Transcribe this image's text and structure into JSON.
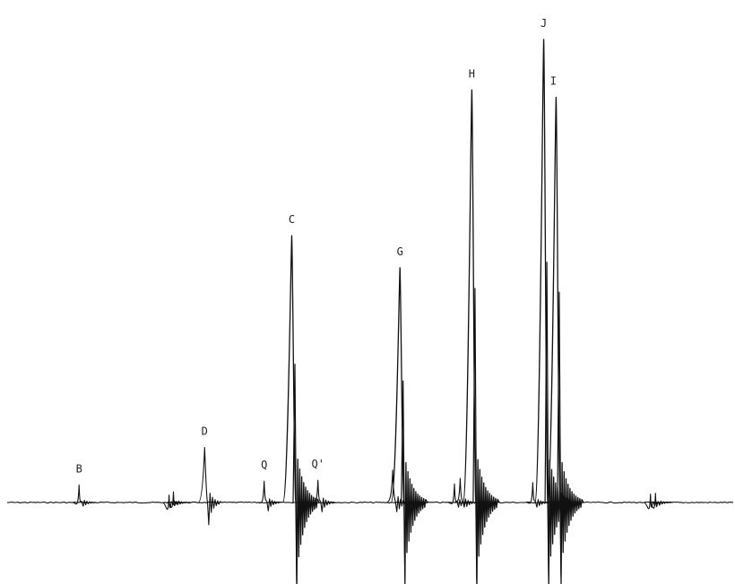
{
  "chart_data": {
    "type": "line",
    "title": "",
    "xlabel": "",
    "ylabel": "",
    "xlim": [
      0,
      100
    ],
    "ylim": [
      -12,
      100
    ],
    "grid": false,
    "legend": "none",
    "line_color": "#111111",
    "background": "#ffffff",
    "peaks": [
      {
        "label": "B",
        "x": 9.9,
        "height": 3.8,
        "dip": 0.8,
        "tail": 0.3
      },
      {
        "label": "",
        "x": 22.3,
        "height": 1.6,
        "dip": 0.5,
        "tail": 0.2
      },
      {
        "label": "",
        "x": 22.9,
        "height": 2.3,
        "dip": 0.5,
        "tail": 0.2
      },
      {
        "label": "D",
        "x": 27.2,
        "height": 11.9,
        "dip": 4.8,
        "tail": 1.0
      },
      {
        "label": "Q",
        "x": 35.4,
        "height": 4.6,
        "dip": 1.8,
        "tail": 0.5
      },
      {
        "label": "C",
        "x": 39.2,
        "height": 57.6,
        "dip": 19.0,
        "tail": 4.5
      },
      {
        "label": "Q'",
        "x": 42.8,
        "height": 4.8,
        "dip": 2.0,
        "tail": 0.6
      },
      {
        "label": "",
        "x": 53.1,
        "height": 7.0,
        "dip": 2.0,
        "tail": 0.8
      },
      {
        "label": "G",
        "x": 54.1,
        "height": 50.7,
        "dip": 17.5,
        "tail": 3.5
      },
      {
        "label": "",
        "x": 61.6,
        "height": 4.0,
        "dip": 1.0,
        "tail": 0.4
      },
      {
        "label": "",
        "x": 62.4,
        "height": 5.2,
        "dip": 1.0,
        "tail": 0.5
      },
      {
        "label": "H",
        "x": 64.0,
        "height": 89.1,
        "dip": 18.8,
        "tail": 5.0
      },
      {
        "label": "",
        "x": 72.4,
        "height": 4.3,
        "dip": 1.0,
        "tail": 0.4
      },
      {
        "label": "J",
        "x": 73.9,
        "height": 100.0,
        "dip": 18.0,
        "tail": 5.0
      },
      {
        "label": "I",
        "x": 75.6,
        "height": 87.5,
        "dip": 17.5,
        "tail": 4.5
      },
      {
        "label": "",
        "x": 88.6,
        "height": 1.8,
        "dip": 0.6,
        "tail": 0.2
      },
      {
        "label": "",
        "x": 89.3,
        "height": 2.0,
        "dip": 0.6,
        "tail": 0.2
      }
    ]
  }
}
